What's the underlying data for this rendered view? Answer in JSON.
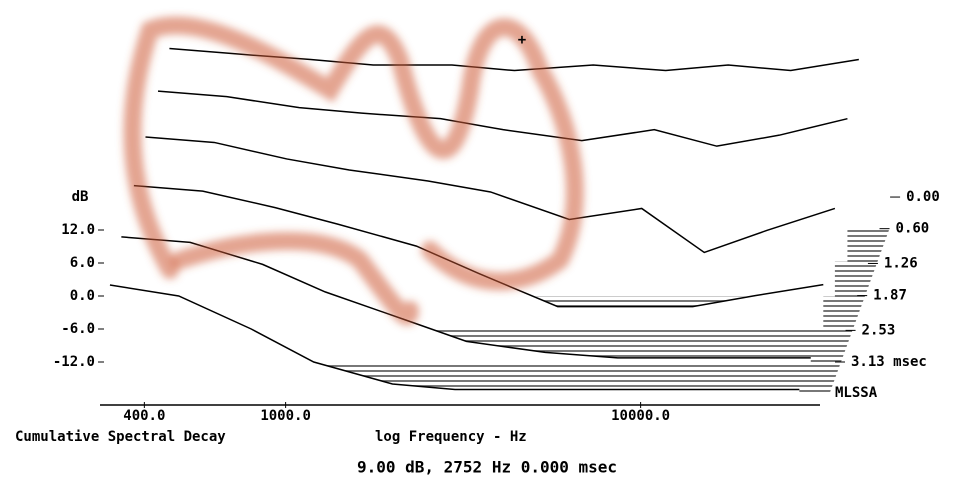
{
  "chart_data": {
    "type": "waterfall",
    "title": "Cumulative Spectral Decay",
    "x_label": "log Frequency - Hz",
    "y_label": "dB",
    "brand": "MLSSA",
    "cursor_readout": "9.00 dB, 2752 Hz  0.000 msec",
    "xscale": "log",
    "xlim": [
      300,
      30000
    ],
    "xticks": [
      {
        "value": 400,
        "label": "400.0"
      },
      {
        "value": 1000,
        "label": "1000.0"
      },
      {
        "value": 10000,
        "label": "10000.0"
      }
    ],
    "ylim": [
      -18,
      18
    ],
    "yticks": [
      {
        "value": 12,
        "label": "12.0"
      },
      {
        "value": 6,
        "label": "6.0"
      },
      {
        "value": 0,
        "label": "0.0"
      },
      {
        "value": -6,
        "label": "-6.0"
      },
      {
        "value": -12,
        "label": "-12.0"
      }
    ],
    "zlim": [
      0,
      3.13
    ],
    "zticks": [
      {
        "value": 0,
        "label": "0.00"
      },
      {
        "value": 0.6,
        "label": "0.60"
      },
      {
        "value": 1.26,
        "label": "1.26"
      },
      {
        "value": 1.87,
        "label": "1.87"
      },
      {
        "value": 2.53,
        "label": "2.53"
      },
      {
        "value": 3.13,
        "label": "3.13 msec"
      }
    ],
    "x": [
      320,
      500,
      800,
      1200,
      2000,
      3000,
      5000,
      8000,
      12000,
      18000,
      28000
    ],
    "series": [
      {
        "t": 0,
        "color": "#000000",
        "values": [
          15,
          14,
          13,
          12,
          12,
          11,
          12,
          11,
          12,
          11,
          13
        ]
      },
      {
        "t": 0.6,
        "color": "#000000",
        "values": [
          13,
          12,
          10,
          9,
          8,
          6,
          4,
          6,
          3,
          5,
          8
        ]
      },
      {
        "t": 1.26,
        "color": "#000000",
        "values": [
          11,
          10,
          7,
          5,
          3,
          1,
          -4,
          -2,
          -10,
          -6,
          -2
        ]
      },
      {
        "t": 1.87,
        "color": "#000000",
        "values": [
          8,
          7,
          4,
          1,
          -3,
          -8,
          -14,
          -14,
          -14,
          -12,
          -10
        ]
      },
      {
        "t": 2.53,
        "color": "#000000",
        "values": [
          5,
          4,
          0,
          -5,
          -10,
          -14,
          -16,
          -17,
          -17,
          -17,
          -17
        ]
      },
      {
        "t": 3.13,
        "color": "#000000",
        "values": [
          2,
          0,
          -6,
          -12,
          -16,
          -17,
          -17,
          -17,
          -17,
          -17,
          -17
        ]
      }
    ]
  }
}
